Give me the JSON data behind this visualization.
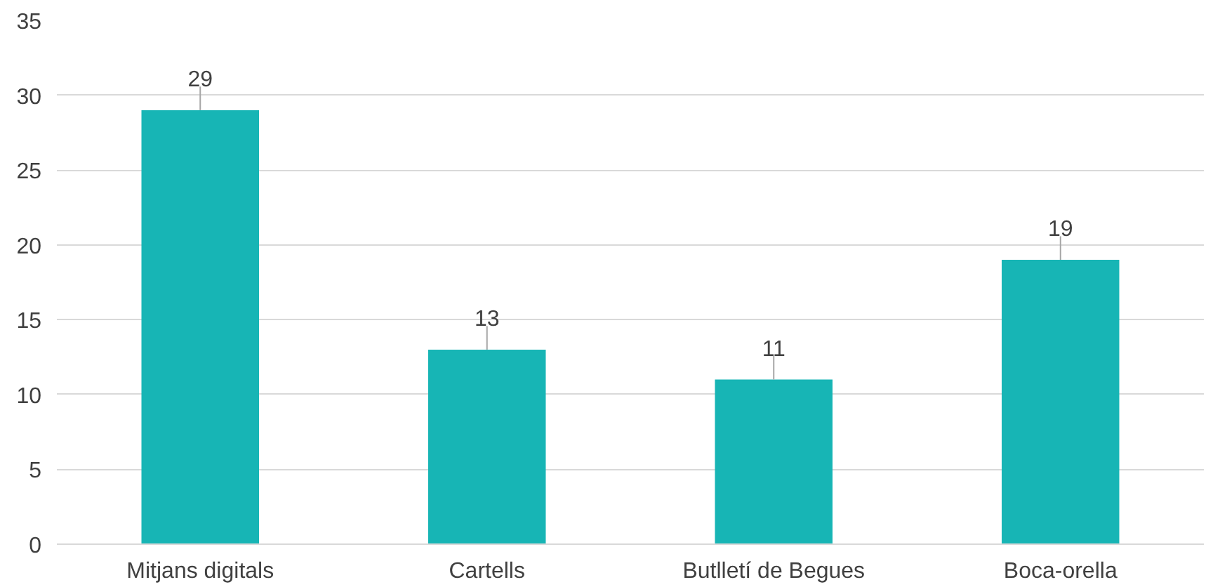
{
  "chart_data": {
    "type": "bar",
    "categories": [
      "Mitjans digitals",
      "Cartells",
      "Butlletí de Begues",
      "Boca-orella"
    ],
    "values": [
      29,
      13,
      11,
      19
    ],
    "color": "#17b5b5",
    "ylim": [
      0,
      35
    ],
    "yticks": [
      0,
      5,
      10,
      15,
      20,
      25,
      30,
      35
    ],
    "grid": "y",
    "data_labels": true
  }
}
